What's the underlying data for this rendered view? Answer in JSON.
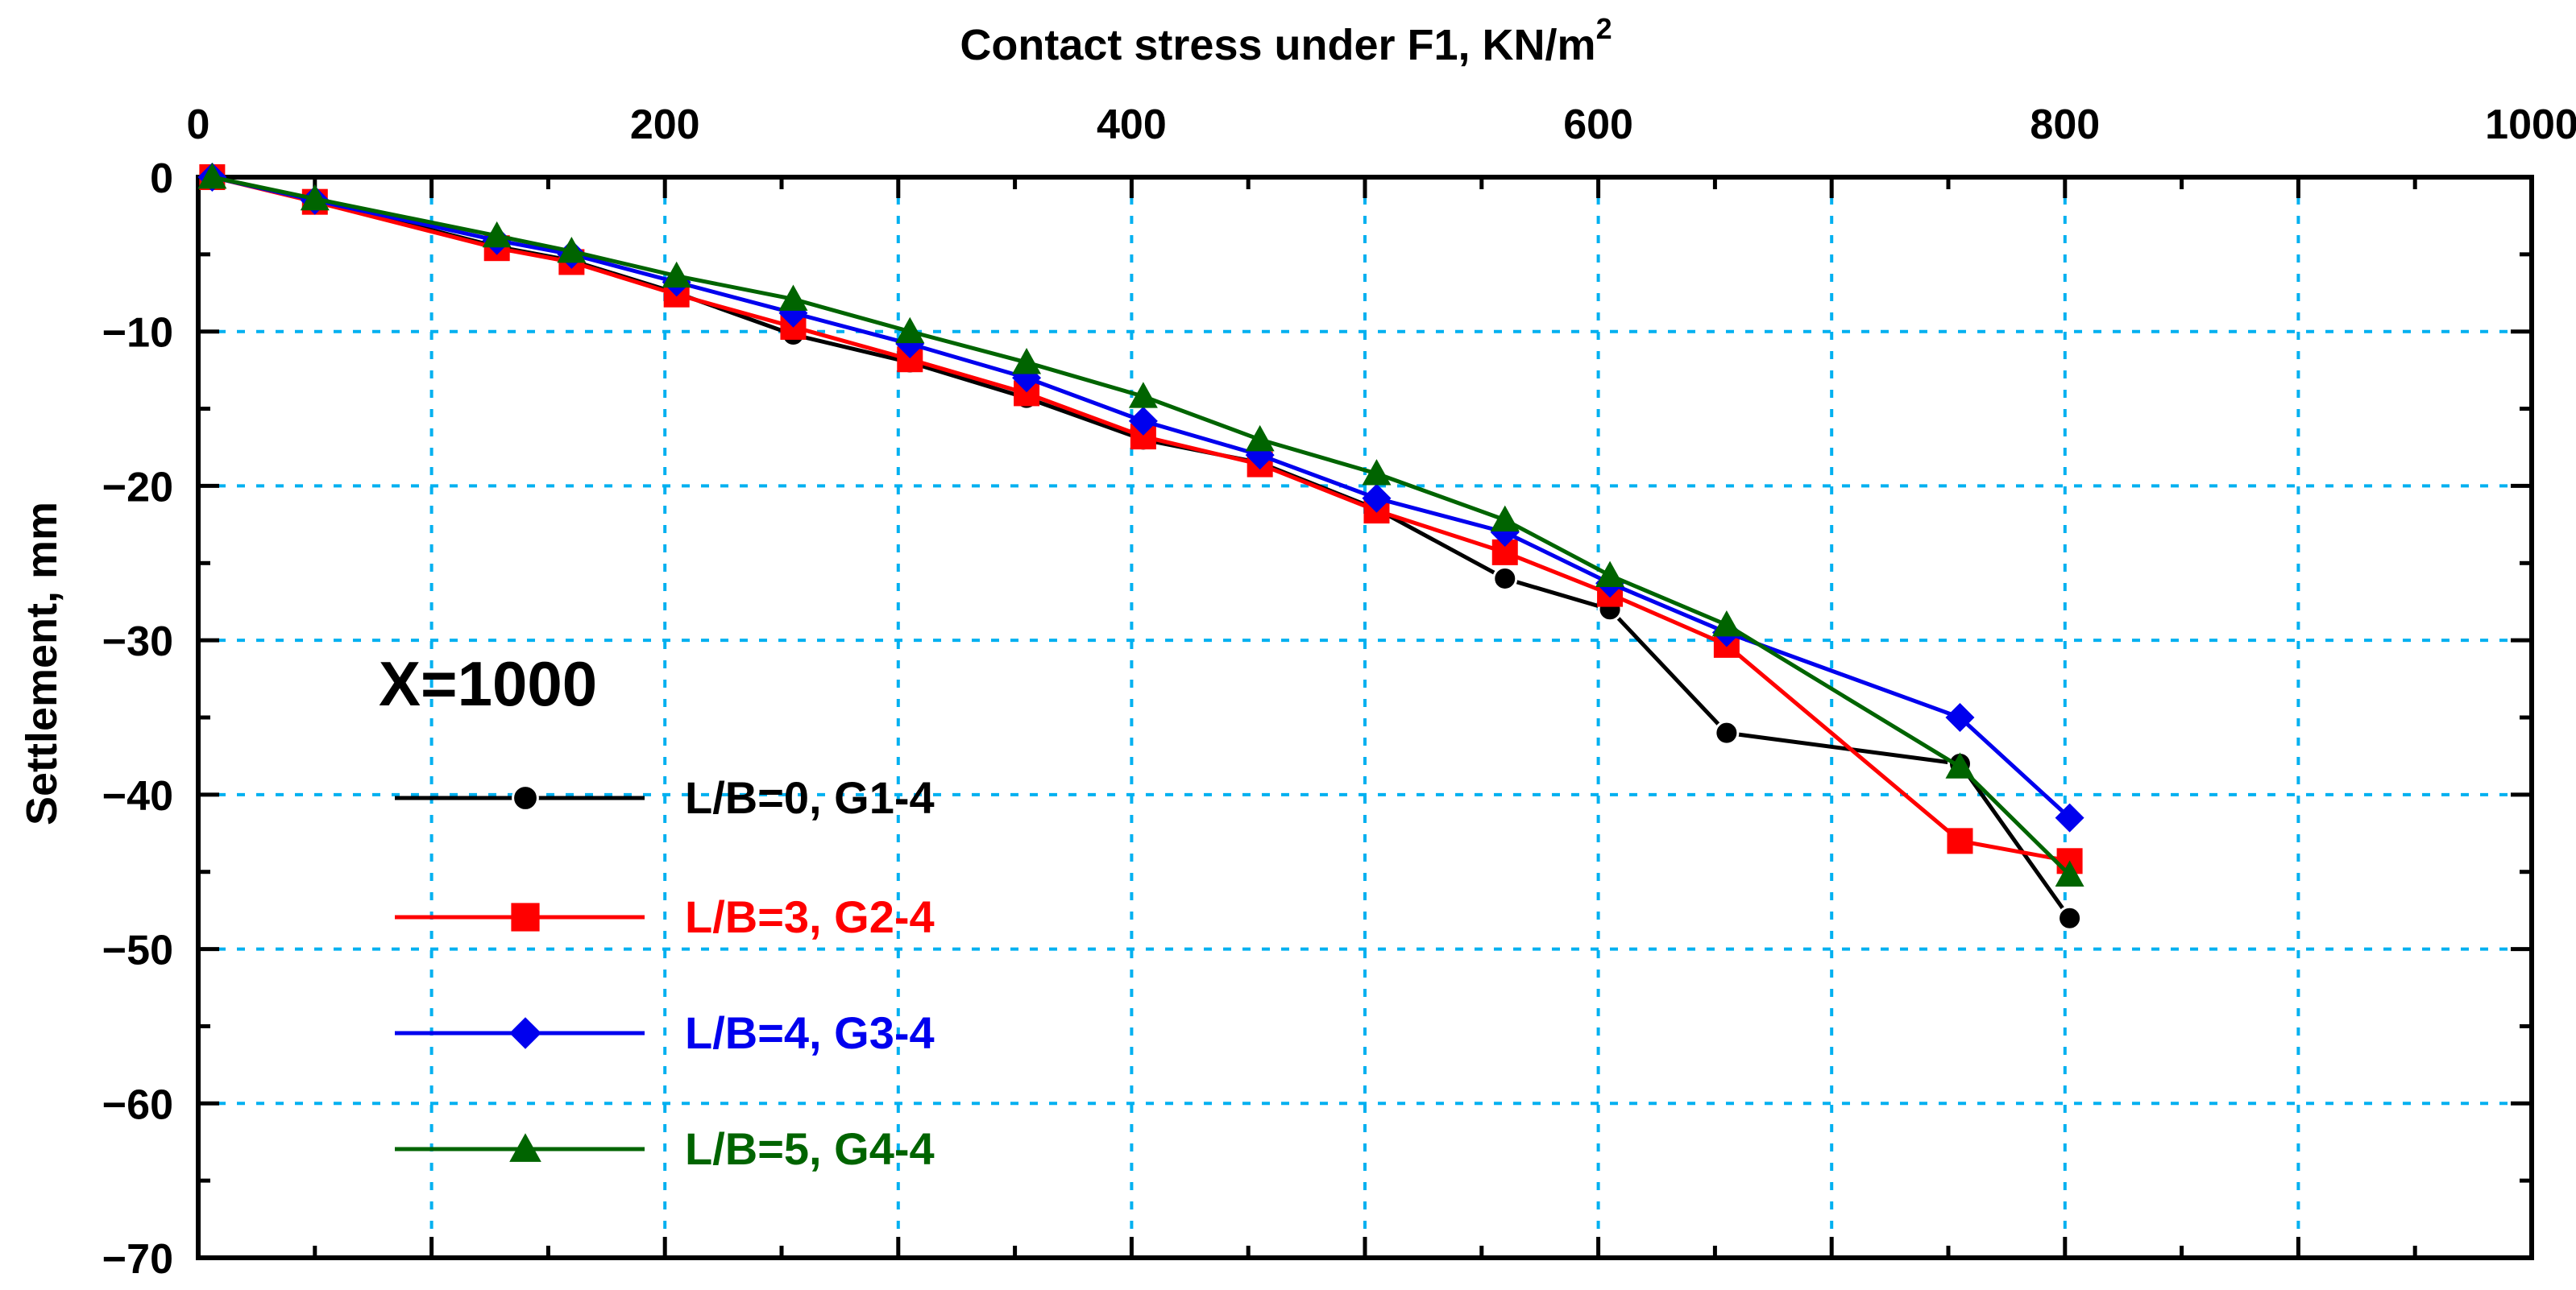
{
  "chart_data": {
    "type": "line",
    "title": "",
    "xlabel": "Contact  stress under F1, KN/m",
    "xlabel_superscript": "2",
    "ylabel": "Settlement, mm",
    "xlim": [
      0,
      1000
    ],
    "ylim": [
      -70,
      0
    ],
    "x_axis_position": "top",
    "grid": true,
    "x_ticks": [
      {
        "value": 0,
        "label": "0"
      },
      {
        "value": 200,
        "label": "200"
      },
      {
        "value": 400,
        "label": "400"
      },
      {
        "value": 600,
        "label": "600"
      },
      {
        "value": 800,
        "label": "800"
      },
      {
        "value": 1000,
        "label": "1000"
      }
    ],
    "y_ticks": [
      {
        "value": 0,
        "label": "0"
      },
      {
        "value": -10,
        "label": "−10"
      },
      {
        "value": -20,
        "label": "−20"
      },
      {
        "value": -30,
        "label": "−30"
      },
      {
        "value": -40,
        "label": "−40"
      },
      {
        "value": -50,
        "label": "−50"
      },
      {
        "value": -60,
        "label": "−60"
      },
      {
        "value": -70,
        "label": "−70"
      }
    ],
    "annotation": "X=1000",
    "legend_position": "bottom-left",
    "series": [
      {
        "name": "L/B=0, G1-4",
        "color": "#000000",
        "marker": "circle",
        "x": [
          6,
          50,
          128,
          160,
          205,
          255,
          305,
          355,
          405,
          455,
          505,
          560,
          605,
          655,
          755,
          802
        ],
        "y": [
          0,
          -1.5,
          -4.5,
          -5.4,
          -7.5,
          -10.2,
          -12,
          -14.3,
          -17,
          -18.5,
          -21.5,
          -26,
          -28,
          -36,
          -38,
          -48
        ]
      },
      {
        "name": "L/B=3, G2-4",
        "color": "#ff0000",
        "marker": "square",
        "x": [
          6,
          50,
          128,
          160,
          205,
          255,
          305,
          355,
          405,
          455,
          505,
          560,
          605,
          655,
          755,
          802
        ],
        "y": [
          0,
          -1.6,
          -4.6,
          -5.5,
          -7.6,
          -9.7,
          -11.8,
          -14,
          -16.8,
          -18.6,
          -21.6,
          -24.3,
          -27,
          -30.3,
          -43,
          -44.3
        ]
      },
      {
        "name": "L/B=4, G3-4",
        "color": "#0000ee",
        "marker": "diamond",
        "x": [
          6,
          50,
          128,
          160,
          205,
          255,
          305,
          355,
          405,
          455,
          505,
          560,
          605,
          655,
          755,
          802
        ],
        "y": [
          0,
          -1.5,
          -4.1,
          -5,
          -6.8,
          -8.8,
          -10.8,
          -13,
          -15.8,
          -18,
          -20.8,
          -23,
          -26.3,
          -29.5,
          -35,
          -41.5
        ]
      },
      {
        "name": "L/B=5, G4-4",
        "color": "#006400",
        "marker": "triangle",
        "x": [
          6,
          50,
          128,
          160,
          205,
          255,
          305,
          355,
          405,
          455,
          505,
          560,
          605,
          655,
          755,
          802
        ],
        "y": [
          0,
          -1.4,
          -3.8,
          -4.8,
          -6.4,
          -7.9,
          -10,
          -12,
          -14.2,
          -17,
          -19.2,
          -22.2,
          -25.8,
          -29,
          -38.2,
          -45.2
        ]
      }
    ]
  }
}
